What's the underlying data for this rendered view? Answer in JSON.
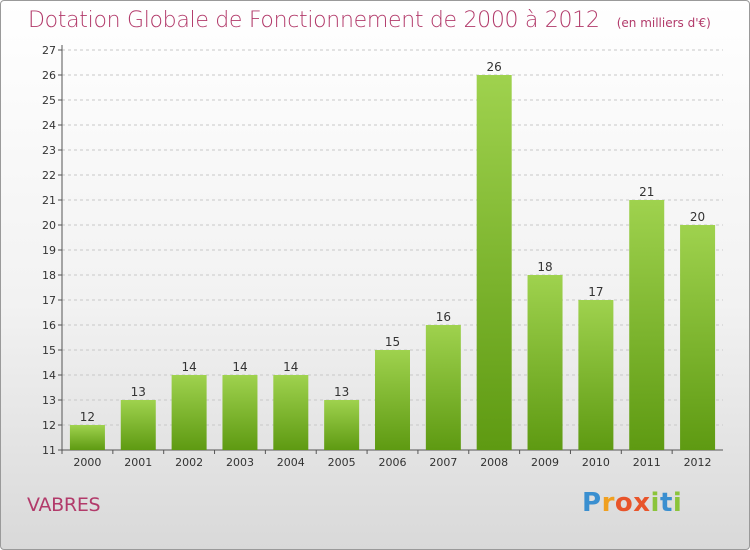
{
  "title": "Dotation Globale de Fonctionnement de 2000 à 2012",
  "subtitle": "(en milliers d'€)",
  "commune": "VABRES",
  "logo": {
    "text": "Proxiti"
  },
  "colors": {
    "title": "#b23a6a",
    "bar_top": "#9fd24e",
    "bar_bottom": "#5e9a12",
    "grid": "#c8c8c8"
  },
  "chart_data": {
    "type": "bar",
    "title": "Dotation Globale de Fonctionnement de 2000 à 2012",
    "subtitle": "(en milliers d'€)",
    "categories": [
      "2000",
      "2001",
      "2002",
      "2003",
      "2004",
      "2005",
      "2006",
      "2007",
      "2008",
      "2009",
      "2010",
      "2011",
      "2012"
    ],
    "values": [
      12,
      13,
      14,
      14,
      14,
      13,
      15,
      16,
      26,
      18,
      17,
      21,
      20
    ],
    "ylim": [
      11,
      27
    ],
    "yticks": [
      11,
      12,
      13,
      14,
      15,
      16,
      17,
      18,
      19,
      20,
      21,
      22,
      23,
      24,
      25,
      26,
      27
    ],
    "grid": true,
    "data_labels": true
  }
}
